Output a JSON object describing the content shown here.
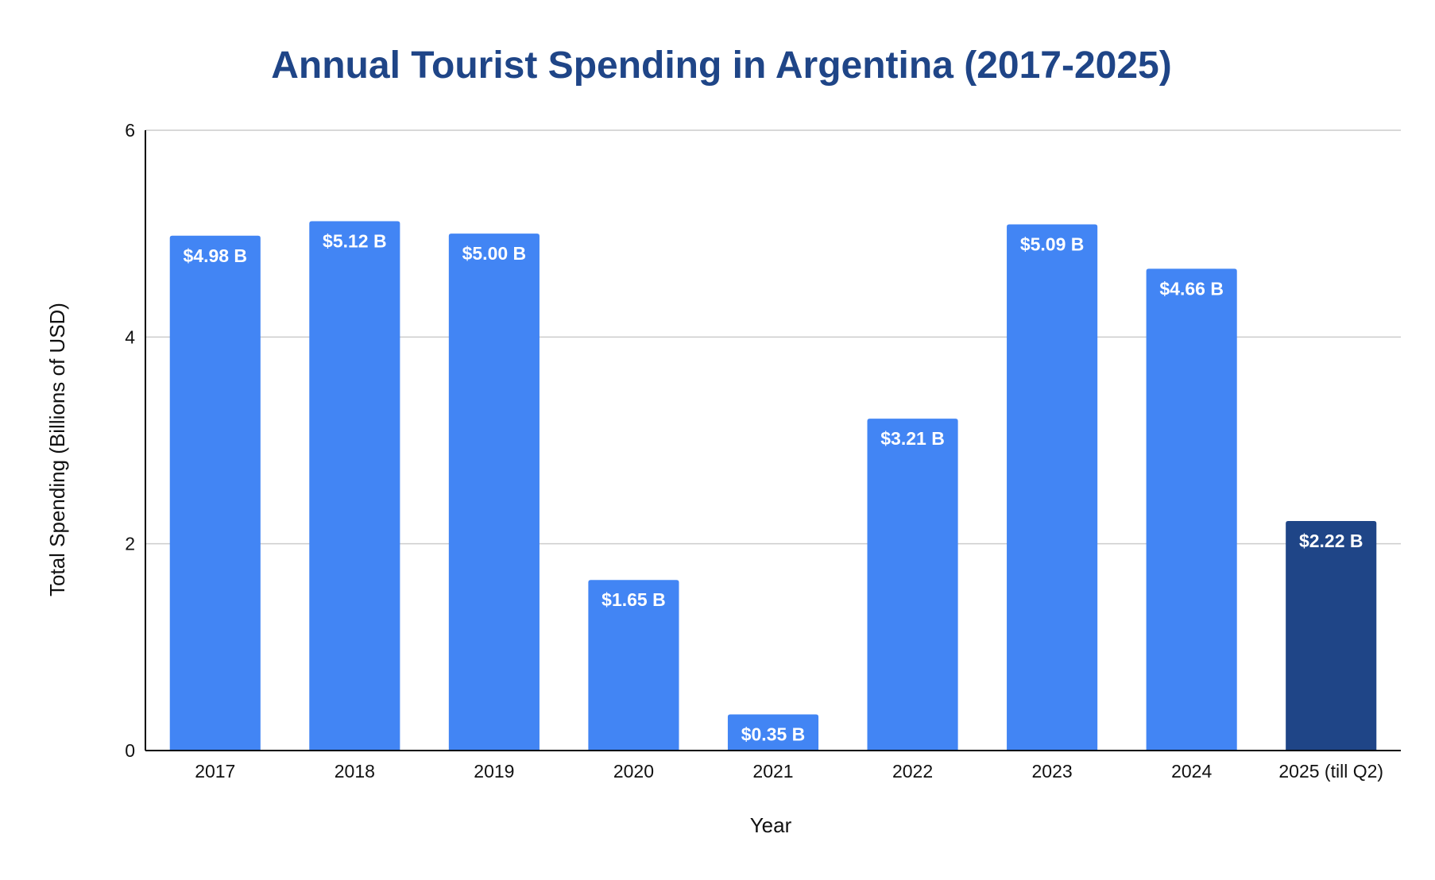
{
  "chart_data": {
    "type": "bar",
    "title": "Annual Tourist Spending in Argentina (2017-2025)",
    "xlabel": "Year",
    "ylabel": "Total Spending (Billions of USD)",
    "categories": [
      "2017",
      "2018",
      "2019",
      "2020",
      "2021",
      "2022",
      "2023",
      "2024",
      "2025 (till Q2)"
    ],
    "values": [
      4.98,
      5.12,
      5.0,
      1.65,
      0.35,
      3.21,
      5.09,
      4.66,
      2.22
    ],
    "data_labels": [
      "$4.98 B",
      "$5.12 B",
      "$5.00 B",
      "$1.65 B",
      "$0.35 B",
      "$3.21 B",
      "$5.09 B",
      "$4.66 B",
      "$2.22 B"
    ],
    "ylim": [
      0,
      6
    ],
    "yticks": [
      0,
      2,
      4,
      6
    ],
    "grid": true,
    "legend": "none",
    "colors": {
      "bar": "#4285f4",
      "highlight_bar": "#1f4587",
      "highlight_index": 8,
      "title": "#1f4587",
      "grid": "#cccccc",
      "axis": "#000000"
    }
  }
}
